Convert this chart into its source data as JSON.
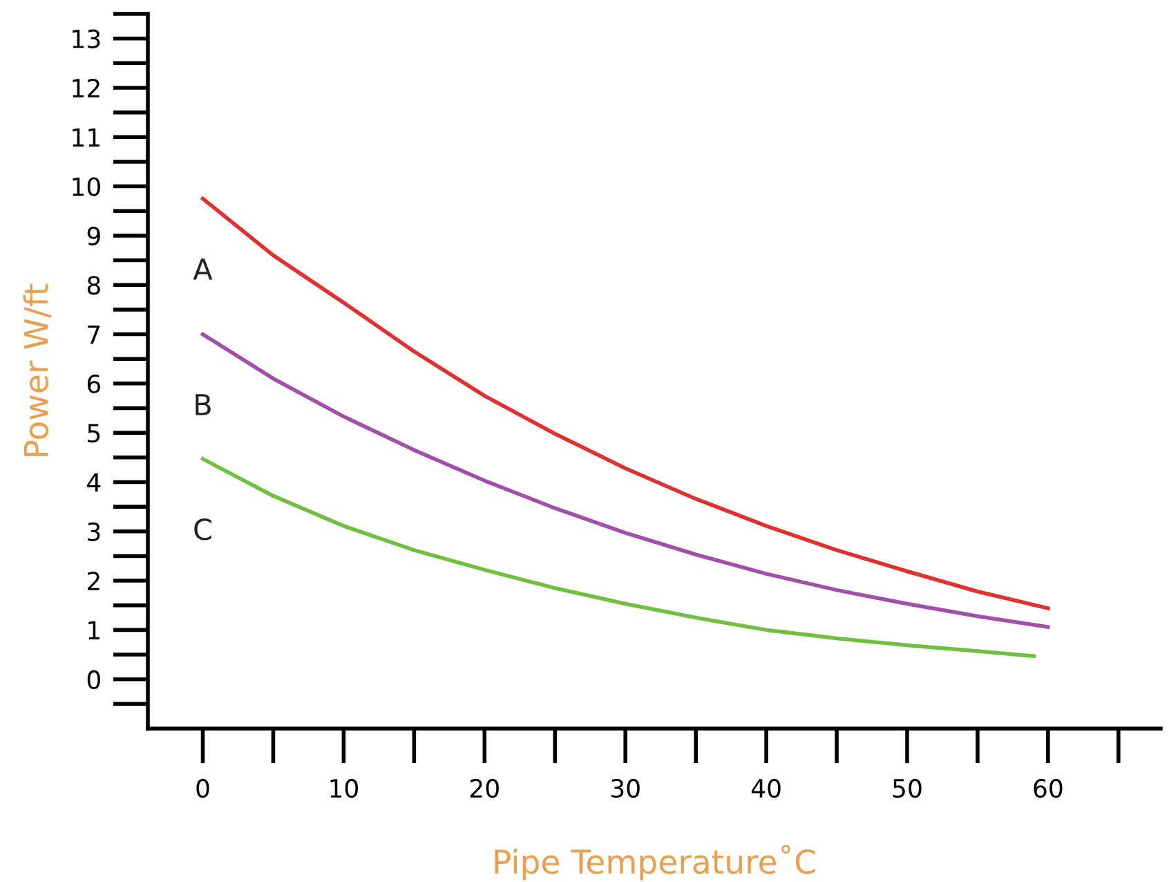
{
  "chart_data": {
    "type": "line",
    "xlabel": "Pipe Temperature˚C",
    "ylabel": "Power W/ft",
    "xlim": [
      -3.9,
      68
    ],
    "ylim": [
      -1,
      13.5
    ],
    "xticks": [
      0,
      10,
      20,
      30,
      40,
      50,
      60
    ],
    "yticks": [
      0,
      1,
      2,
      3,
      4,
      5,
      6,
      7,
      8,
      9,
      10,
      11,
      12,
      13
    ],
    "grid": false,
    "legend": false,
    "marker": "none",
    "line_style": "solid",
    "series": [
      {
        "name": "A",
        "color": "#e03030",
        "x": [
          0,
          5,
          10,
          15,
          20,
          25,
          30,
          35,
          40,
          45,
          50,
          55,
          60
        ],
        "values": [
          9.75,
          8.6,
          7.64,
          6.65,
          5.75,
          4.98,
          4.28,
          3.66,
          3.11,
          2.62,
          2.19,
          1.78,
          1.44
        ]
      },
      {
        "name": "B",
        "color": "#a050a8",
        "x": [
          0,
          5,
          10,
          15,
          20,
          25,
          30,
          35,
          40,
          45,
          50,
          55,
          60
        ],
        "values": [
          7.0,
          6.1,
          5.33,
          4.65,
          4.03,
          3.47,
          2.97,
          2.53,
          2.14,
          1.81,
          1.53,
          1.28,
          1.06
        ]
      },
      {
        "name": "C",
        "color": "#70c040",
        "x": [
          0,
          5,
          10,
          15,
          20,
          25,
          30,
          35,
          40,
          45,
          50,
          55,
          59
        ],
        "values": [
          4.47,
          3.72,
          3.11,
          2.62,
          2.22,
          1.85,
          1.53,
          1.25,
          1.0,
          0.83,
          0.69,
          0.57,
          0.47
        ]
      }
    ]
  }
}
